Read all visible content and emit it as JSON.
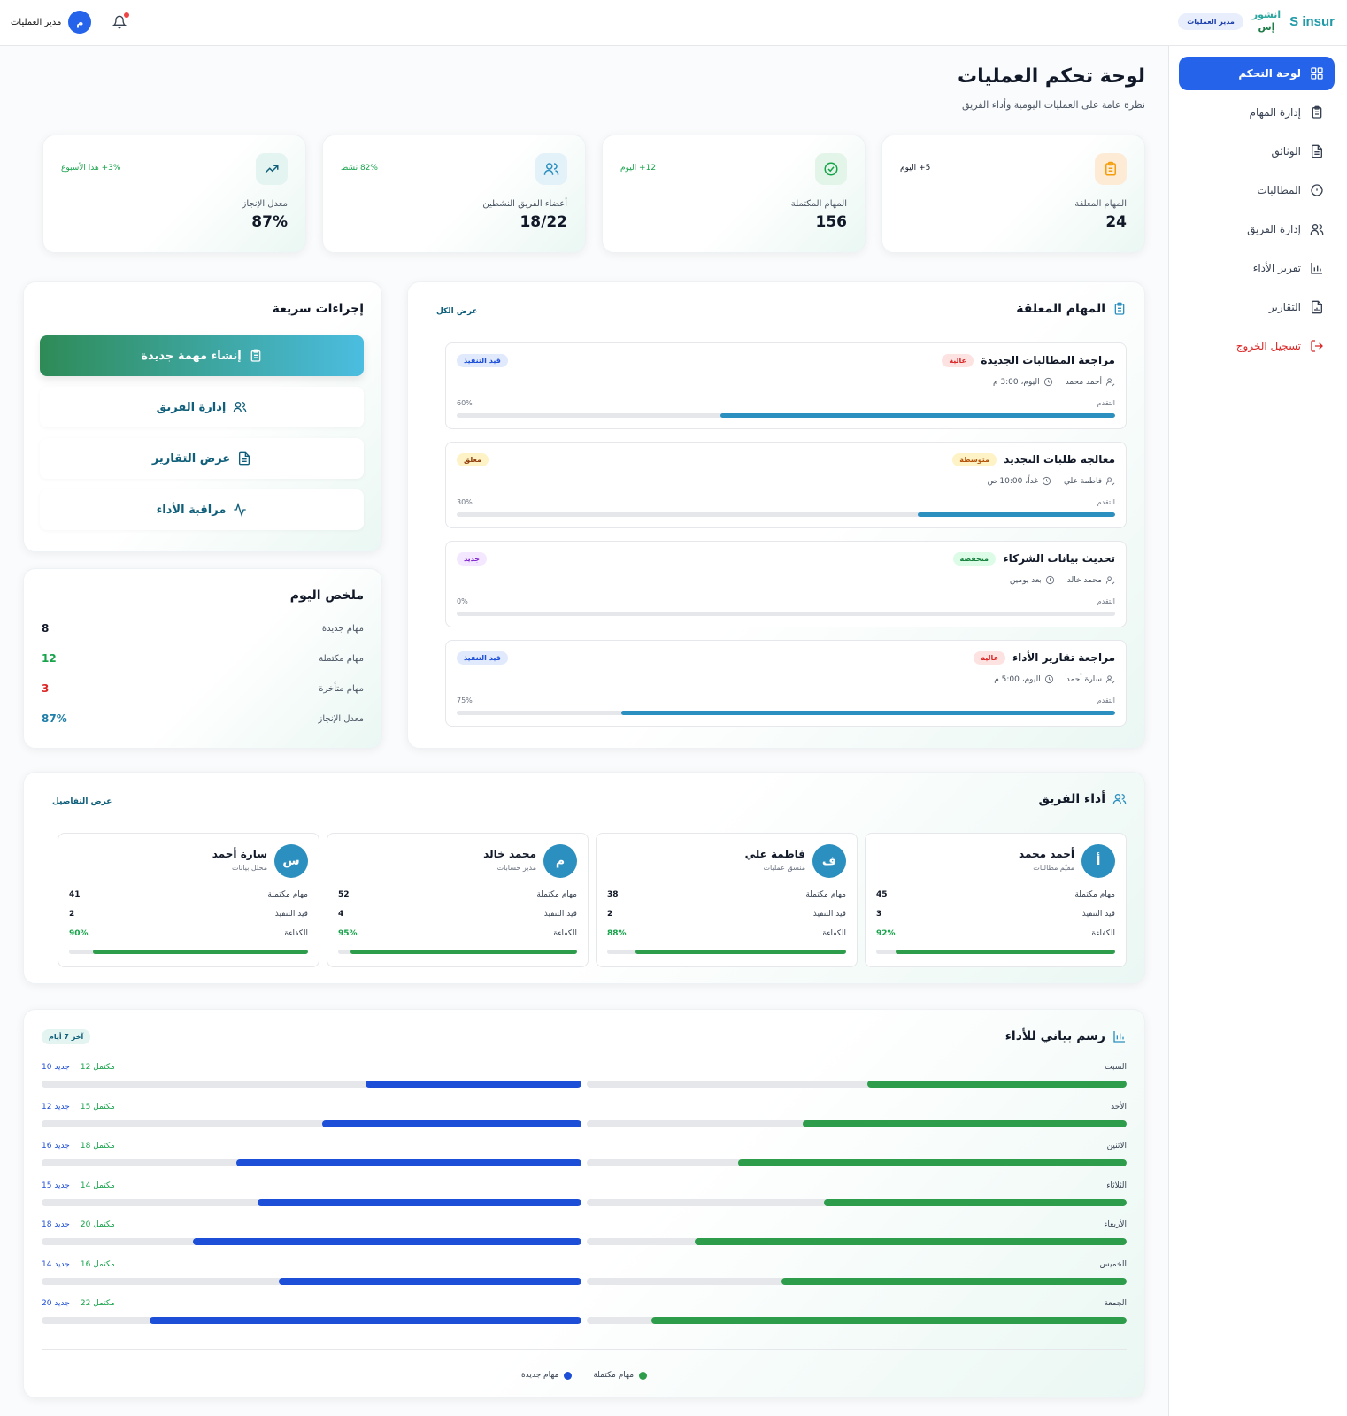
{
  "brand": {
    "logo": "S insur",
    "name_line1": "انشور",
    "name_line2": "إس",
    "role": "مدير العمليات"
  },
  "user": {
    "name": "مدير العمليات",
    "initial": "م"
  },
  "sidebar": {
    "items": [
      {
        "label": "لوحة التحكم",
        "icon": "grid-icon",
        "active": true
      },
      {
        "label": "إدارة المهام",
        "icon": "clipboard-icon"
      },
      {
        "label": "الوثائق",
        "icon": "document-icon"
      },
      {
        "label": "المطالبات",
        "icon": "alert-circle-icon"
      },
      {
        "label": "إدارة الفريق",
        "icon": "users-icon"
      },
      {
        "label": "تقرير الأداء",
        "icon": "bar-chart-icon"
      },
      {
        "label": "التقارير",
        "icon": "report-icon"
      }
    ],
    "logout": "تسجيل الخروج"
  },
  "header": {
    "title": "لوحة تحكم العمليات",
    "subtitle": "نظرة عامة على العمليات اليومية وأداء الفريق"
  },
  "stats": [
    {
      "label": "المهام المعلقة",
      "value": "24",
      "trend": "5+ اليوم",
      "icon": "clipboard-icon",
      "color": "#f59e0b",
      "bg": "#fdebd6",
      "trend_color": "#111827"
    },
    {
      "label": "المهام المكتملة",
      "value": "156",
      "trend": "12+ اليوم",
      "icon": "check-circle-icon",
      "color": "#16a34a",
      "bg": "#e3f5e8",
      "trend_color": "#16a34a"
    },
    {
      "label": "أعضاء الفريق النشطين",
      "value": "18/22",
      "trend": "82% نشط",
      "icon": "users-icon",
      "color": "#2b8fbf",
      "bg": "#e3f1f8",
      "trend_color": "#16a34a"
    },
    {
      "label": "معدل الإنجاز",
      "value": "87%",
      "trend": "3%+ هذا الأسبوع",
      "icon": "trending-up-icon",
      "color": "#0f5f7a",
      "bg": "#e4f4f1",
      "trend_color": "#16a34a"
    }
  ],
  "pending": {
    "title": "المهام المعلقة",
    "view_all": "عرض الكل",
    "progress_label": "التقدم",
    "tasks": [
      {
        "title": "مراجعة المطالبات الجديدة",
        "priority": "عالية",
        "priority_bg": "#fde2e2",
        "priority_color": "#dc2626",
        "assignee": "أحمد محمد",
        "time": "اليوم، 3:00 م",
        "status": "قيد التنفيذ",
        "status_bg": "#e0eafc",
        "status_color": "#1d4ed8",
        "progress": 60,
        "progress_text": "60%"
      },
      {
        "title": "معالجة طلبات التجديد",
        "priority": "متوسطة",
        "priority_bg": "#fef3c7",
        "priority_color": "#b45309",
        "assignee": "فاطمة علي",
        "time": "غداً، 10:00 ص",
        "status": "معلق",
        "status_bg": "#fef3c7",
        "status_color": "#92400e",
        "progress": 30,
        "progress_text": "30%"
      },
      {
        "title": "تحديث بيانات الشركاء",
        "priority": "منخفضة",
        "priority_bg": "#dcfce7",
        "priority_color": "#15803d",
        "assignee": "محمد خالد",
        "time": "بعد يومين",
        "status": "جديد",
        "status_bg": "#f3e8ff",
        "status_color": "#7e22ce",
        "progress": 0,
        "progress_text": "0%"
      },
      {
        "title": "مراجعة تقارير الأداء",
        "priority": "عالية",
        "priority_bg": "#fde2e2",
        "priority_color": "#dc2626",
        "assignee": "سارة أحمد",
        "time": "اليوم، 5:00 م",
        "status": "قيد التنفيذ",
        "status_bg": "#e0eafc",
        "status_color": "#1d4ed8",
        "progress": 75,
        "progress_text": "75%"
      }
    ]
  },
  "quick": {
    "title": "إجراءات سريعة",
    "primary": "إنشاء مهمة جديدة",
    "buttons": [
      {
        "label": "إدارة الفريق",
        "icon": "users-icon"
      },
      {
        "label": "عرض التقارير",
        "icon": "report-icon"
      },
      {
        "label": "مراقبة الأداء",
        "icon": "activity-icon"
      }
    ]
  },
  "summary": {
    "title": "ملخص اليوم",
    "rows": [
      {
        "label": "مهام جديدة",
        "value": "8",
        "color": "#111827"
      },
      {
        "label": "مهام مكتملة",
        "value": "12",
        "color": "#16a34a"
      },
      {
        "label": "مهام متأخرة",
        "value": "3",
        "color": "#dc2626"
      },
      {
        "label": "معدل الإنجاز",
        "value": "87%",
        "color": "#1f7fa8"
      }
    ]
  },
  "team": {
    "title": "أداء الفريق",
    "details": "عرض التفاصيل",
    "completed_label": "مهام مكتملة",
    "inprogress_label": "قيد التنفيذ",
    "efficiency_label": "الكفاءة",
    "members": [
      {
        "name": "أحمد محمد",
        "role": "مقيّم مطالبات",
        "initial": "أ",
        "completed": "45",
        "in_progress": "3",
        "efficiency": 92,
        "efficiency_text": "92%"
      },
      {
        "name": "فاطمة علي",
        "role": "منسق عمليات",
        "initial": "ف",
        "completed": "38",
        "in_progress": "2",
        "efficiency": 88,
        "efficiency_text": "88%"
      },
      {
        "name": "محمد خالد",
        "role": "مدير حسابات",
        "initial": "م",
        "completed": "52",
        "in_progress": "4",
        "efficiency": 95,
        "efficiency_text": "95%"
      },
      {
        "name": "سارة أحمد",
        "role": "محلل بيانات",
        "initial": "س",
        "completed": "41",
        "in_progress": "2",
        "efficiency": 90,
        "efficiency_text": "90%"
      }
    ]
  },
  "chart_data": {
    "type": "bar",
    "title": "رسم بياني للأداء",
    "period": "آخر 7 أيام",
    "categories": [
      "السبت",
      "الأحد",
      "الاثنين",
      "الثلاثاء",
      "الأربعاء",
      "الخميس",
      "الجمعة"
    ],
    "series": [
      {
        "name": "مهام مكتملة",
        "color": "#2e9d4b",
        "values": [
          12,
          15,
          18,
          14,
          20,
          16,
          22
        ]
      },
      {
        "name": "مهام جديدة",
        "color": "#1d4ed8",
        "values": [
          10,
          12,
          16,
          15,
          18,
          14,
          20
        ]
      }
    ],
    "completed_suffix": "مكتمل",
    "new_suffix": "جديد",
    "max": 25
  }
}
